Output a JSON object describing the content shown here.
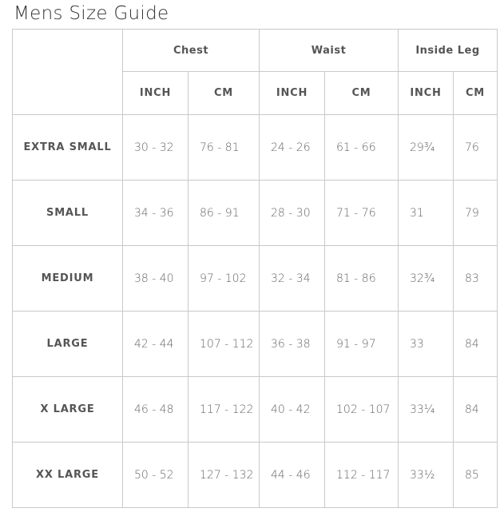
{
  "title": "Mens Size Guide",
  "groups": [
    "Chest",
    "Waist",
    "Inside Leg"
  ],
  "units": [
    "INCH",
    "CM",
    "INCH",
    "CM",
    "INCH",
    "CM"
  ],
  "rows": [
    {
      "size": "EXTRA SMALL",
      "values": [
        "30 - 32",
        "76 - 81",
        "24 - 26",
        "61 - 66",
        "29¾",
        "76"
      ]
    },
    {
      "size": "SMALL",
      "values": [
        "34 - 36",
        "86 - 91",
        "28 - 30",
        "71 - 76",
        "31",
        "79"
      ]
    },
    {
      "size": "MEDIUM",
      "values": [
        "38 - 40",
        "97 - 102",
        "32 - 34",
        "81 - 86",
        "32¾",
        "83"
      ]
    },
    {
      "size": "LARGE",
      "values": [
        "42 - 44",
        "107 - 112",
        "36 - 38",
        "91 - 97",
        "33",
        "84"
      ]
    },
    {
      "size": "X LARGE",
      "values": [
        "46 - 48",
        "117 - 122",
        "40 - 42",
        "102 - 107",
        "33¼",
        "84"
      ]
    },
    {
      "size": "XX LARGE",
      "values": [
        "50 - 52",
        "127 - 132",
        "44 - 46",
        "112 - 117",
        "33½",
        "85"
      ]
    }
  ]
}
